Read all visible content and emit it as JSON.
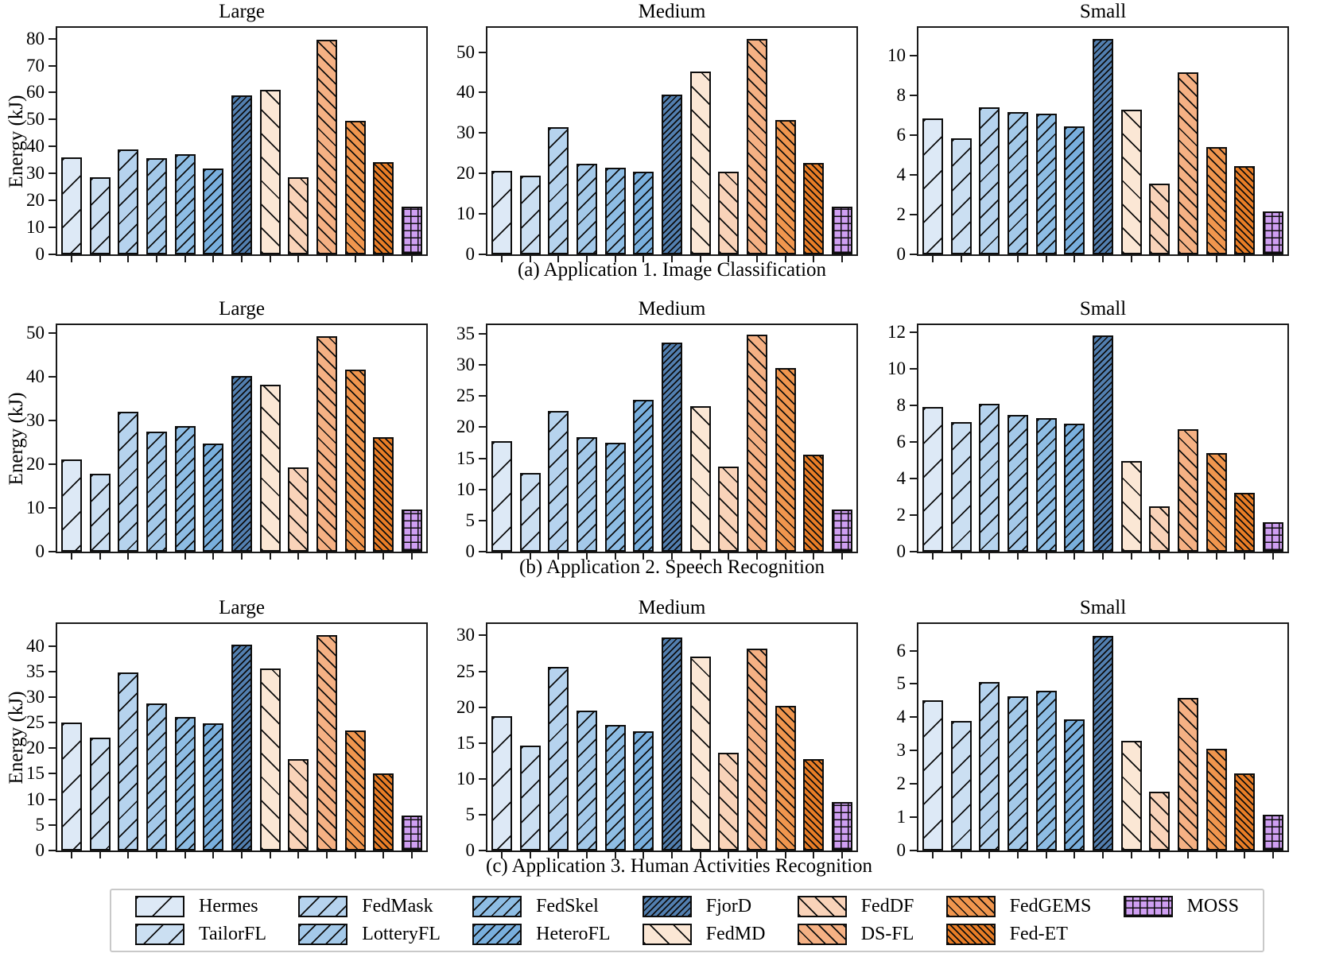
{
  "figure": {
    "ylabel": "Energy (kJ)"
  },
  "methods": [
    {
      "label": "Hermes",
      "color": "#dde9f6",
      "hatch": "/",
      "spacing": 30
    },
    {
      "label": "TailorFL",
      "color": "#cbdff2",
      "hatch": "/",
      "spacing": 22
    },
    {
      "label": "FedMask",
      "color": "#b6d3ee",
      "hatch": "/",
      "spacing": 16
    },
    {
      "label": "LotteryFL",
      "color": "#a4c9e9",
      "hatch": "/",
      "spacing": 13
    },
    {
      "label": "FedSkel",
      "color": "#8ebde4",
      "hatch": "/",
      "spacing": 10.5
    },
    {
      "label": "HeteroFL",
      "color": "#79afdd",
      "hatch": "/",
      "spacing": 9
    },
    {
      "label": "FjorD",
      "color": "#527fb0",
      "hatch": "/",
      "spacing": 5.5
    },
    {
      "label": "FedMD",
      "color": "#fbe7d5",
      "hatch": "\\",
      "spacing": 21
    },
    {
      "label": "FedDF",
      "color": "#f9d3b9",
      "hatch": "\\",
      "spacing": 15
    },
    {
      "label": "DS-FL",
      "color": "#f5b184",
      "hatch": "\\",
      "spacing": 11
    },
    {
      "label": "FedGEMS",
      "color": "#f0964e",
      "hatch": "\\",
      "spacing": 8.5
    },
    {
      "label": "Fed-ET",
      "color": "#e87d26",
      "hatch": "\\",
      "spacing": 6
    },
    {
      "label": "MOSS",
      "color": "#cf9ff2",
      "hatch": "+",
      "spacing": 9
    }
  ],
  "chart_data": {
    "type": "bar",
    "ylabel": "Energy (kJ)",
    "categories": [
      "Hermes",
      "TailorFL",
      "FedMask",
      "LotteryFL",
      "FedSkel",
      "HeteroFL",
      "FjorD",
      "FedMD",
      "FedDF",
      "DS-FL",
      "FedGEMS",
      "Fed-ET",
      "MOSS"
    ],
    "legend_position": "bottom",
    "grid": false,
    "rows": [
      {
        "caption": "(a) Application 1. Image Classification",
        "subplots": [
          {
            "title": "Large",
            "ylim": [
              0,
              84
            ],
            "yticks": [
              0,
              10,
              20,
              30,
              40,
              50,
              60,
              70,
              80
            ],
            "values": [
              36.0,
              28.7,
              39.0,
              35.7,
              37.0,
              31.8,
              59.0,
              61.0,
              28.7,
              79.7,
              49.5,
              34.3,
              17.8
            ]
          },
          {
            "title": "Medium",
            "ylim": [
              0,
              56
            ],
            "yticks": [
              0,
              10,
              20,
              30,
              40,
              50
            ],
            "values": [
              20.7,
              19.5,
              31.5,
              22.4,
              21.4,
              20.5,
              39.5,
              45.1,
              20.5,
              53.3,
              33.2,
              22.5,
              11.7
            ]
          },
          {
            "title": "Small",
            "ylim": [
              0,
              11.4
            ],
            "yticks": [
              0,
              2,
              4,
              6,
              8,
              10
            ],
            "values": [
              6.85,
              5.85,
              7.4,
              7.15,
              7.1,
              6.45,
              10.85,
              7.3,
              3.55,
              9.15,
              5.4,
              4.45,
              2.15
            ]
          }
        ]
      },
      {
        "caption": "(b) Application 2. Speech Recognition",
        "subplots": [
          {
            "title": "Large",
            "ylim": [
              0,
              51.8
            ],
            "yticks": [
              0,
              10,
              20,
              30,
              40,
              50
            ],
            "values": [
              21.0,
              17.8,
              32.0,
              27.4,
              28.7,
              24.8,
              40.2,
              38.2,
              19.3,
              49.2,
              41.6,
              26.2,
              9.6
            ]
          },
          {
            "title": "Medium",
            "ylim": [
              0,
              36.4
            ],
            "yticks": [
              0,
              5,
              10,
              15,
              20,
              25,
              30,
              35
            ],
            "values": [
              17.7,
              12.7,
              22.6,
              18.4,
              17.5,
              24.4,
              33.6,
              23.4,
              13.7,
              34.9,
              29.5,
              15.6,
              6.8
            ]
          },
          {
            "title": "Small",
            "ylim": [
              0,
              12.4
            ],
            "yticks": [
              0,
              2,
              4,
              6,
              8,
              10,
              12
            ],
            "values": [
              7.9,
              7.1,
              8.1,
              7.5,
              7.3,
              7.0,
              11.85,
              4.95,
              2.5,
              6.7,
              5.4,
              3.2,
              1.6
            ]
          }
        ]
      },
      {
        "caption": "(c) Application 3. Human Activities Recognition",
        "subplots": [
          {
            "title": "Large",
            "ylim": [
              0,
              44.3
            ],
            "yticks": [
              0,
              5,
              10,
              15,
              20,
              25,
              30,
              35,
              40
            ],
            "values": [
              25.0,
              22.0,
              34.8,
              28.8,
              26.1,
              24.8,
              40.2,
              35.6,
              17.9,
              42.2,
              23.4,
              15.1,
              6.9
            ]
          },
          {
            "title": "Medium",
            "ylim": [
              0,
              31.6
            ],
            "yticks": [
              0,
              5,
              10,
              15,
              20,
              25,
              30
            ],
            "values": [
              18.7,
              14.6,
              25.6,
              19.5,
              17.5,
              16.6,
              29.7,
              27.1,
              13.6,
              28.2,
              20.2,
              12.7,
              6.8
            ]
          },
          {
            "title": "Small",
            "ylim": [
              0,
              6.8
            ],
            "yticks": [
              0,
              1,
              2,
              3,
              4,
              5,
              6
            ],
            "values": [
              4.5,
              3.9,
              5.05,
              4.62,
              4.8,
              3.93,
              6.45,
              3.3,
              1.77,
              4.57,
              3.05,
              2.32,
              1.07
            ]
          }
        ]
      }
    ]
  },
  "legend": {
    "columns": [
      [
        "Hermes",
        "TailorFL"
      ],
      [
        "FedMask",
        "LotteryFL"
      ],
      [
        "FedSkel",
        "HeteroFL"
      ],
      [
        "FjorD",
        "FedMD"
      ],
      [
        "FedDF",
        "DS-FL"
      ],
      [
        "FedGEMS",
        "Fed-ET"
      ],
      [
        "MOSS"
      ]
    ]
  }
}
